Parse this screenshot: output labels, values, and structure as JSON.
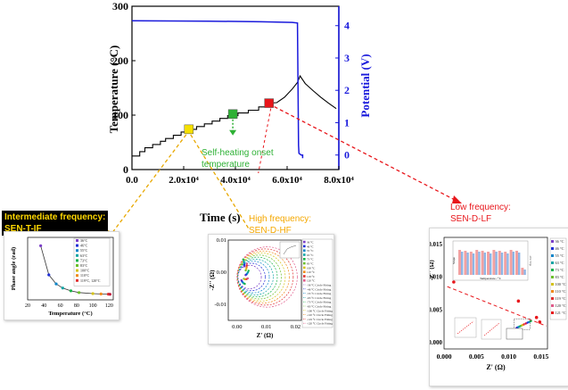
{
  "main_chart": {
    "type": "line",
    "xlabel": "Time (s)",
    "ylabel_left": "Temperature (°C)",
    "ylabel_right": "Potential (V)",
    "x_ticks": [
      "0.0",
      "2.0x10⁴",
      "4.0x10⁴",
      "6.0x10⁴",
      "8.0x10⁴"
    ],
    "x_tick_values": [
      0,
      20000,
      40000,
      60000,
      80000
    ],
    "xlim": [
      0,
      80000
    ],
    "y_left_ticks": [
      "0",
      "100",
      "200",
      "300"
    ],
    "y_left_values": [
      0,
      100,
      200,
      300
    ],
    "ylim_left": [
      0,
      300
    ],
    "y_right_ticks": [
      "0",
      "1",
      "2",
      "3",
      "4"
    ],
    "y_right_values": [
      0,
      1,
      2,
      3,
      4
    ],
    "ylim_right": [
      -0.45,
      4.6
    ],
    "temperature_series": {
      "color": "#000000",
      "points": [
        [
          0,
          25
        ],
        [
          3000,
          25
        ],
        [
          3000,
          33
        ],
        [
          5000,
          33
        ],
        [
          5000,
          40
        ],
        [
          8000,
          40
        ],
        [
          8000,
          46
        ],
        [
          11000,
          46
        ],
        [
          11000,
          52
        ],
        [
          13000,
          52
        ],
        [
          13000,
          57
        ],
        [
          16000,
          57
        ],
        [
          16000,
          63
        ],
        [
          19000,
          63
        ],
        [
          19000,
          69
        ],
        [
          22000,
          69
        ],
        [
          22000,
          74
        ],
        [
          25000,
          74
        ],
        [
          25000,
          79
        ],
        [
          28000,
          79
        ],
        [
          28000,
          84
        ],
        [
          31000,
          84
        ],
        [
          31000,
          89
        ],
        [
          34000,
          89
        ],
        [
          34000,
          94
        ],
        [
          37000,
          94
        ],
        [
          37000,
          99
        ],
        [
          41000,
          99
        ],
        [
          41000,
          104
        ],
        [
          45000,
          104
        ],
        [
          45000,
          109
        ],
        [
          49000,
          109
        ],
        [
          49000,
          115
        ],
        [
          53000,
          115
        ],
        [
          53000,
          122
        ],
        [
          56000,
          123
        ],
        [
          59000,
          133
        ],
        [
          62000,
          148
        ],
        [
          64000,
          160
        ],
        [
          65000,
          172
        ],
        [
          67000,
          158
        ],
        [
          70000,
          145
        ],
        [
          73000,
          133
        ],
        [
          76000,
          122
        ],
        [
          79000,
          112
        ]
      ]
    },
    "potential_series": {
      "color": "#1a1adc",
      "points": [
        [
          0,
          4.15
        ],
        [
          30000,
          4.14
        ],
        [
          50000,
          4.12
        ],
        [
          62000,
          4.1
        ],
        [
          64000,
          4.08
        ],
        [
          64200,
          2.2
        ],
        [
          64400,
          0.3
        ],
        [
          64600,
          0.05
        ],
        [
          65500,
          0.0
        ],
        [
          66000,
          0.0
        ],
        [
          66000,
          -0.1
        ]
      ]
    },
    "markers": [
      {
        "name": "yellow-marker",
        "x": 22000,
        "y": 74,
        "color": "#f5e000"
      },
      {
        "name": "green-marker",
        "x": 39000,
        "y": 102,
        "color": "#2eb135"
      },
      {
        "name": "red-marker",
        "x": 53000,
        "y": 122,
        "color": "#e8161b"
      }
    ]
  },
  "annotations": {
    "self_heating": "Self-heating onset\ntemperature",
    "intermediate": "Intermediate frequency:\nSEN-T-IF",
    "high": "High frequency:\nSEN-D-HF",
    "low": "Low frequency:\nSEN-D-LF"
  },
  "colors": {
    "intermediate_bg": "#000000",
    "intermediate_text": "#ffd800",
    "high_text": "#f5a800",
    "low_text": "#e8161b",
    "green_annot": "#2eb135",
    "yellow_arrow": "#e8a800",
    "red_arrow": "#e8161b"
  },
  "chart_data": [
    {
      "type": "line",
      "title": "",
      "xlabel": "Time (s)",
      "ylabel": "Temperature (°C)",
      "y2label": "Potential (V)",
      "xlim": [
        0,
        80000
      ],
      "ylim": [
        0,
        300
      ],
      "y2lim": [
        -0.45,
        4.6
      ],
      "series": [
        {
          "name": "",
          "axis": "left",
          "x": [
            0,
            3000,
            5000,
            8000,
            11000,
            13000,
            16000,
            19000,
            22000,
            25000,
            28000,
            31000,
            34000,
            37000,
            41000,
            45000,
            49000,
            53000,
            56000,
            59000,
            62000,
            64000,
            65000,
            67000,
            70000,
            73000,
            76000,
            79000
          ],
          "values": [
            25,
            33,
            40,
            46,
            52,
            57,
            63,
            69,
            74,
            79,
            84,
            89,
            94,
            99,
            104,
            109,
            115,
            122,
            123,
            133,
            148,
            160,
            172,
            158,
            145,
            133,
            122,
            112
          ]
        },
        {
          "name": "",
          "axis": "right",
          "x": [
            0,
            30000,
            50000,
            62000,
            64000,
            64200,
            64400,
            64600,
            65500,
            66000
          ],
          "values": [
            4.15,
            4.14,
            4.12,
            4.1,
            4.08,
            2.2,
            0.3,
            0.05,
            0.0,
            0.0
          ]
        }
      ]
    },
    {
      "type": "line",
      "xlabel": "Temperature (°C)",
      "ylabel": "Phase angle (rad)",
      "x_ticks": [
        "20",
        "40",
        "60",
        "80",
        "100",
        "120"
      ],
      "xlim": [
        20,
        125
      ],
      "ylim": [
        0,
        9
      ],
      "x": [
        36,
        46,
        55,
        63,
        73,
        83,
        100,
        110,
        119,
        121
      ],
      "values": [
        7.8,
        3.6,
        2.3,
        1.7,
        1.3,
        1.05,
        0.9,
        0.85,
        0.82,
        0.8
      ],
      "legend": [
        "36°C",
        "46°C",
        "55°C",
        "63°C",
        "73°C",
        "83°C",
        "100°C",
        "110°C",
        "119°C, 120°C"
      ]
    },
    {
      "type": "scatter",
      "xlabel": "Z' (Ω)",
      "ylabel": "-Z'' (Ω)",
      "x_ticks": [
        "0.00",
        "0.01",
        "0.02"
      ],
      "y_ticks": [
        "0.01",
        "0.00",
        "-0.01"
      ],
      "xlim": [
        -0.003,
        0.022
      ],
      "ylim": [
        -0.015,
        0.01
      ],
      "legend": [
        "36 °C",
        "46 °C",
        "55 °C",
        "63 °C",
        "73 °C",
        "83 °C",
        "100 °C",
        "110 °C",
        "119 °C",
        "120 °C",
        "-36 °C Circle Fitting",
        "-46 °C Circle Fitting",
        "-55 °C Circle Fitting",
        "-63 °C Circle Fitting",
        "-73 °C Circle Fitting",
        "-83 °C Circle Fitting",
        "-100 °C Circle Fitting",
        "-110 °C Circle Fitting",
        "-119 °C Circle Fitting",
        "-120 °C Circle Fitting"
      ]
    },
    {
      "type": "scatter",
      "xlabel": "Z' (Ω)",
      "ylabel": "-Z'' (Ω)",
      "x_ticks": [
        "0.000",
        "0.005",
        "0.010",
        "0.015"
      ],
      "y_ticks": [
        "0.000",
        "0.005",
        "0.010",
        "0.015"
      ],
      "xlim": [
        0,
        0.016
      ],
      "ylim": [
        -0.001,
        0.016
      ],
      "legend": [
        "36 °C",
        "46 °C",
        "55 °C",
        "63 °C",
        "73 °C",
        "83 °C",
        "100 °C",
        "110 °C",
        "119 °C",
        "120 °C",
        "121 °C"
      ],
      "outlier_points": [
        [
          0.0015,
          0.0092
        ],
        [
          0.0115,
          0.0063
        ],
        [
          0.0143,
          0.0038
        ],
        [
          0.0148,
          0.0031
        ]
      ]
    }
  ],
  "inset_intermediate": {
    "xlabel": "Temperature (°C)",
    "ylabel": "Phase angle (rad)",
    "x_ticks": [
      "20",
      "40",
      "60",
      "80",
      "100",
      "120"
    ],
    "x_tick_values": [
      20,
      40,
      60,
      80,
      100,
      120
    ],
    "xlim": [
      20,
      125
    ],
    "ylim": [
      0,
      9
    ],
    "points": [
      [
        36,
        7.8
      ],
      [
        46,
        3.6
      ],
      [
        55,
        2.3
      ],
      [
        63,
        1.7
      ],
      [
        73,
        1.3
      ],
      [
        83,
        1.05
      ],
      [
        100,
        0.9
      ],
      [
        110,
        0.85
      ],
      [
        119,
        0.82
      ],
      [
        121,
        0.8
      ]
    ],
    "point_colors": [
      "#7b3fc7",
      "#1f2fd6",
      "#0a85c9",
      "#0fa4a4",
      "#16b24a",
      "#6bbf2a",
      "#d4c21a",
      "#f08a19",
      "#e03030",
      "#c02040"
    ],
    "legend": [
      "36°C",
      "46°C",
      "55°C",
      "63°C",
      "73°C",
      "83°C",
      "100°C",
      "110°C",
      "119°C, 120°C"
    ]
  },
  "inset_high": {
    "xlabel": "Z' (Ω)",
    "ylabel": "-Z'' (Ω)",
    "x_ticks": [
      "0.00",
      "0.01",
      "0.02"
    ],
    "x_tick_values": [
      0,
      0.01,
      0.02
    ],
    "y_ticks": [
      "0.01",
      "0.00",
      "-0.01"
    ],
    "y_tick_values": [
      0.01,
      0,
      -0.01
    ],
    "xlim": [
      -0.003,
      0.022
    ],
    "ylim": [
      -0.015,
      0.01
    ],
    "circle_colors": [
      "#7b3fc7",
      "#1f2fd6",
      "#0a85c9",
      "#0fa4a4",
      "#16b24a",
      "#6bbf2a",
      "#d4c21a",
      "#f08a19",
      "#e03030",
      "#e05a8a"
    ],
    "legend": [
      "36 °C",
      "46 °C",
      "55 °C",
      "63 °C",
      "73 °C",
      "83 °C",
      "100 °C",
      "110 °C",
      "119 °C",
      "120 °C",
      "-36 °C Circle Fitting",
      "-46 °C Circle Fitting",
      "-55 °C Circle Fitting",
      "-63 °C Circle Fitting",
      "-73 °C Circle Fitting",
      "-83 °C Circle Fitting",
      "-100 °C Circle Fitting",
      "-110 °C Circle Fitting",
      "-119 °C Circle Fitting",
      "-120 °C Circle Fitting"
    ]
  },
  "inset_low": {
    "xlabel": "Z' (Ω)",
    "ylabel": "-Z'' (Ω)",
    "x_ticks": [
      "0.000",
      "0.005",
      "0.010",
      "0.015"
    ],
    "x_tick_values": [
      0,
      0.005,
      0.01,
      0.015
    ],
    "y_ticks": [
      "0.000",
      "0.005",
      "0.010",
      "0.015"
    ],
    "y_tick_values": [
      0,
      0.005,
      0.01,
      0.015
    ],
    "xlim": [
      0,
      0.016
    ],
    "ylim": [
      -0.001,
      0.016
    ],
    "legend": [
      "36 °C",
      "46 °C",
      "55 °C",
      "63 °C",
      "73 °C",
      "83 °C",
      "100 °C",
      "110 °C",
      "119 °C",
      "120 °C",
      "121 °C"
    ],
    "legend_colors": [
      "#7b3fc7",
      "#1f2fd6",
      "#0a85c9",
      "#0fa4a4",
      "#16b24a",
      "#6bbf2a",
      "#d4c21a",
      "#f08a19",
      "#e03030",
      "#e05a8a",
      "#e8161b"
    ],
    "outlier_points": [
      [
        0.0015,
        0.0092
      ],
      [
        0.0115,
        0.0063
      ],
      [
        0.0143,
        0.0038
      ],
      [
        0.0148,
        0.0031
      ]
    ],
    "subinset_ylabel": "Slope",
    "subinset_xlabel": "Temperature / °C",
    "subinset_y2label": "-Ct / Cp"
  }
}
